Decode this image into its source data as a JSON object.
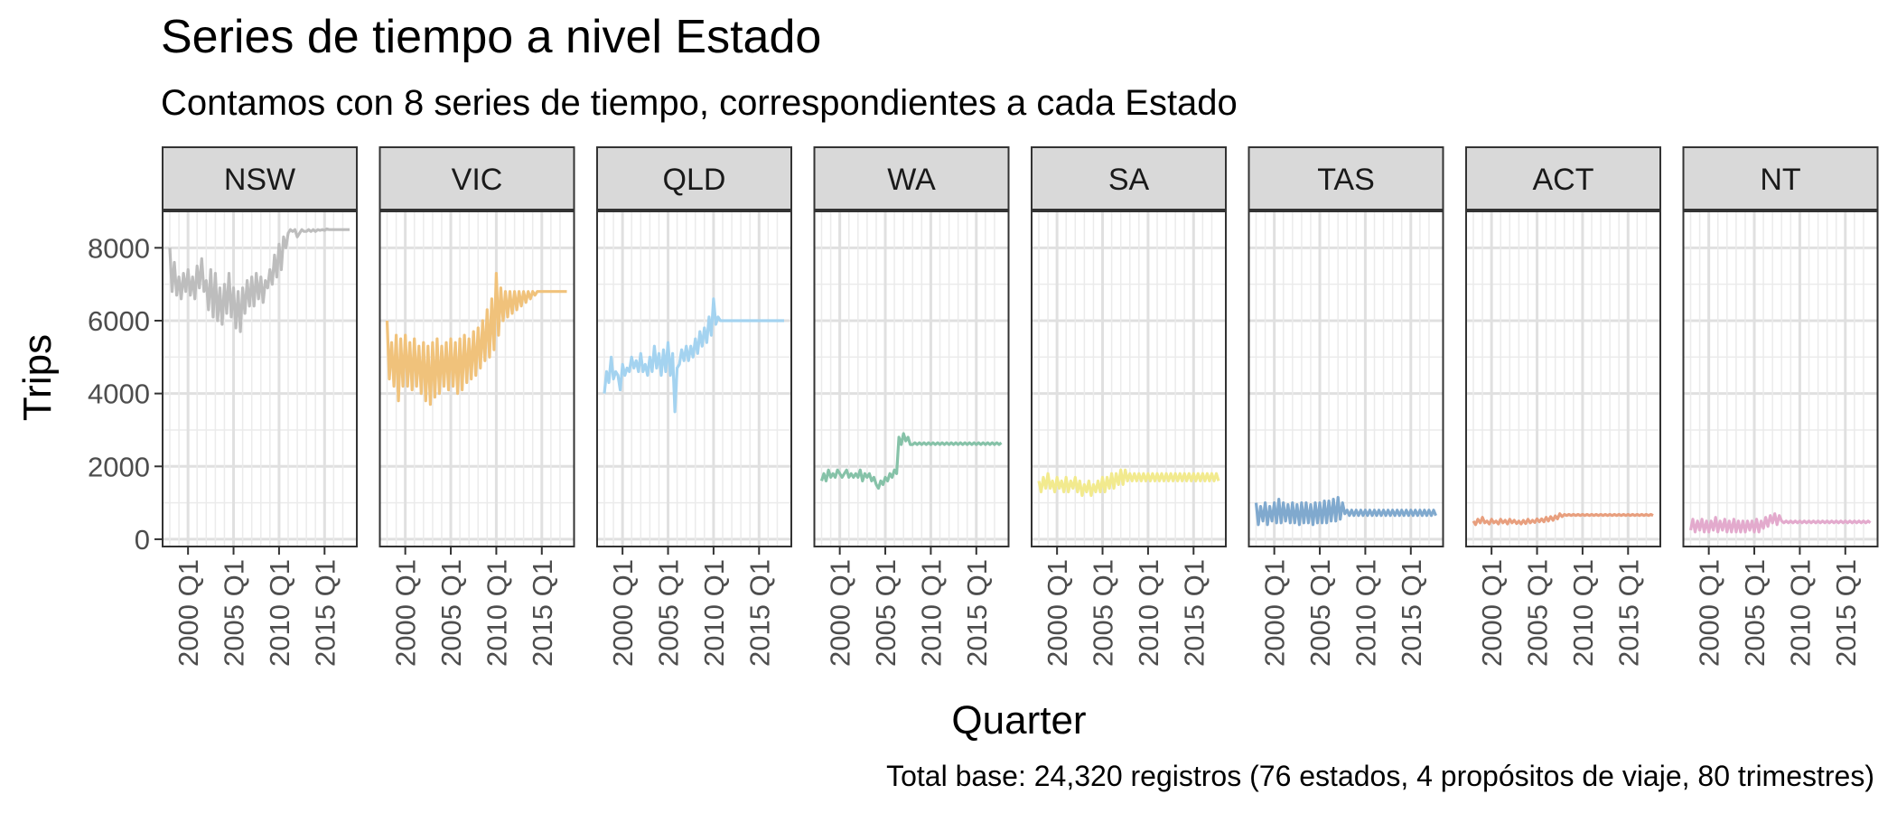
{
  "chart_data": {
    "type": "line",
    "title": "Series de tiempo a nivel Estado",
    "subtitle": "Contamos con 8 series de tiempo, correspondientes a cada Estado",
    "xlabel": "Quarter",
    "ylabel": "Trips",
    "caption": "Total base: 24,320 registros (76 estados, 4 propósitos de viaje, 80 trimestres)",
    "x_range": [
      "1998 Q1",
      "2017 Q4"
    ],
    "x_ticks": [
      "2000 Q1",
      "2005 Q1",
      "2010 Q1",
      "2015 Q1"
    ],
    "ylim": [
      -200,
      9000
    ],
    "y_ticks": [
      0,
      2000,
      4000,
      6000,
      8000
    ],
    "grid": true,
    "legend": "none",
    "series": [
      {
        "name": "NSW",
        "color": "#BDBDBD",
        "start": "1998 Q1",
        "values": [
          8000,
          6800,
          7600,
          6700,
          7200,
          6600,
          7300,
          6800,
          7400,
          6700,
          7200,
          6600,
          7500,
          6900,
          7700,
          6800,
          7100,
          6300,
          7400,
          6100,
          7300,
          6000,
          6900,
          5900,
          7000,
          6200,
          7300,
          6100,
          6900,
          5800,
          6800,
          5700,
          6900,
          6200,
          7100,
          6400,
          7200,
          6400,
          7300,
          6600,
          7200,
          6500,
          7100,
          6900,
          7400,
          7000,
          7800,
          7200,
          8100,
          7400,
          8300,
          8000,
          8400,
          8500,
          8450,
          8500,
          8300,
          8400,
          8500,
          8450,
          8450,
          8500,
          8450,
          8500,
          8450,
          8500,
          8480,
          8500,
          8480,
          8520,
          8500,
          8500,
          8500,
          8500,
          8500,
          8500,
          8500,
          8500,
          8500,
          8500
        ]
      },
      {
        "name": "VIC",
        "color": "#F0C27B",
        "start": "1998 Q1",
        "values": [
          6000,
          4400,
          5400,
          4200,
          5600,
          3800,
          5500,
          4200,
          5600,
          4200,
          5400,
          4100,
          5500,
          4200,
          5300,
          4000,
          5400,
          3800,
          5300,
          3700,
          5400,
          3900,
          5500,
          4000,
          5300,
          4200,
          5400,
          4100,
          5500,
          4200,
          5400,
          4000,
          5500,
          4100,
          5600,
          4300,
          5500,
          4400,
          5700,
          4500,
          5800,
          4700,
          6000,
          4900,
          6300,
          5000,
          6600,
          5200,
          7300,
          5600,
          6900,
          6000,
          6800,
          6100,
          6800,
          6200,
          6800,
          6300,
          6800,
          6400,
          6800,
          6500,
          6800,
          6600,
          6800,
          6700,
          6800,
          6800,
          6800,
          6800,
          6800,
          6800,
          6800,
          6800,
          6800,
          6800,
          6800,
          6800,
          6800,
          6800
        ]
      },
      {
        "name": "QLD",
        "color": "#A4D3F0",
        "start": "1998 Q1",
        "values": [
          4000,
          4600,
          4300,
          5000,
          4400,
          4600,
          4500,
          4100,
          4800,
          4500,
          4700,
          4600,
          5000,
          4700,
          4900,
          4600,
          5100,
          4600,
          4800,
          4500,
          5000,
          4600,
          5300,
          4700,
          5100,
          4500,
          5200,
          4600,
          5400,
          4500,
          5100,
          3500,
          4700,
          4800,
          5200,
          4900,
          5300,
          4900,
          5300,
          5000,
          5500,
          5100,
          5700,
          5300,
          5800,
          5400,
          6100,
          5600,
          6600,
          5900,
          6100,
          6000,
          6000,
          6000,
          6000,
          6000,
          6000,
          6000,
          6000,
          6000,
          6000,
          6000,
          6000,
          6000,
          6000,
          6000,
          6000,
          6000,
          6000,
          6000,
          6000,
          6000,
          6000,
          6000,
          6000,
          6000,
          6000,
          6000,
          6000,
          6000
        ]
      },
      {
        "name": "WA",
        "color": "#86C2A8",
        "start": "1998 Q1",
        "values": [
          1600,
          1800,
          1600,
          1900,
          1700,
          1800,
          1700,
          1900,
          1800,
          1700,
          1800,
          1900,
          1700,
          1800,
          1700,
          1800,
          1700,
          1900,
          1600,
          1800,
          1700,
          1800,
          1600,
          1700,
          1500,
          1400,
          1600,
          1500,
          1700,
          1600,
          1800,
          1700,
          1900,
          1800,
          2800,
          2600,
          2900,
          2700,
          2800,
          2600,
          2600,
          2650,
          2600,
          2650,
          2600,
          2650,
          2600,
          2650,
          2600,
          2650,
          2600,
          2650,
          2600,
          2650,
          2600,
          2650,
          2600,
          2650,
          2600,
          2650,
          2600,
          2650,
          2600,
          2650,
          2600,
          2650,
          2600,
          2650,
          2600,
          2650,
          2600,
          2650,
          2600,
          2650,
          2600,
          2650,
          2600,
          2650,
          2600,
          2650
        ]
      },
      {
        "name": "SA",
        "color": "#F2EA8E",
        "start": "1998 Q1",
        "values": [
          1600,
          1300,
          1700,
          1400,
          1800,
          1400,
          1600,
          1300,
          1700,
          1400,
          1600,
          1300,
          1700,
          1300,
          1600,
          1400,
          1700,
          1300,
          1600,
          1200,
          1500,
          1300,
          1600,
          1200,
          1500,
          1300,
          1600,
          1300,
          1700,
          1300,
          1700,
          1400,
          1800,
          1400,
          1800,
          1500,
          1900,
          1500,
          1900,
          1600,
          1800,
          1600,
          1800,
          1600,
          1800,
          1600,
          1800,
          1600,
          1800,
          1600,
          1800,
          1600,
          1800,
          1600,
          1800,
          1600,
          1800,
          1600,
          1800,
          1600,
          1800,
          1600,
          1800,
          1600,
          1800,
          1600,
          1800,
          1600,
          1800,
          1600,
          1800,
          1600,
          1800,
          1600,
          1800,
          1600,
          1800,
          1600,
          1800,
          1600
        ]
      },
      {
        "name": "TAS",
        "color": "#80A9CE",
        "start": "1998 Q1",
        "values": [
          1000,
          400,
          900,
          500,
          1000,
          400,
          900,
          500,
          1000,
          450,
          1100,
          450,
          1000,
          500,
          950,
          450,
          1000,
          450,
          950,
          400,
          1000,
          450,
          1000,
          450,
          950,
          400,
          1000,
          450,
          1000,
          450,
          1050,
          450,
          1050,
          500,
          1100,
          500,
          1150,
          550,
          1000,
          700,
          800,
          650,
          800,
          650,
          800,
          650,
          800,
          650,
          800,
          650,
          800,
          650,
          800,
          650,
          800,
          650,
          800,
          650,
          800,
          650,
          800,
          650,
          800,
          650,
          800,
          650,
          800,
          650,
          800,
          650,
          800,
          650,
          800,
          650,
          800,
          650,
          800,
          650,
          800,
          650
        ]
      },
      {
        "name": "ACT",
        "color": "#E89F7E",
        "start": "1998 Q1",
        "values": [
          500,
          400,
          550,
          450,
          600,
          450,
          500,
          420,
          550,
          450,
          500,
          420,
          550,
          450,
          520,
          420,
          550,
          450,
          520,
          430,
          500,
          420,
          520,
          430,
          550,
          450,
          520,
          460,
          560,
          480,
          560,
          480,
          600,
          500,
          620,
          520,
          640,
          560,
          700,
          620,
          680,
          650,
          680,
          650,
          680,
          650,
          680,
          650,
          680,
          650,
          680,
          650,
          680,
          650,
          680,
          650,
          680,
          650,
          680,
          650,
          680,
          650,
          680,
          650,
          680,
          650,
          680,
          650,
          680,
          650,
          680,
          650,
          680,
          650,
          680,
          650,
          680,
          650,
          680,
          650
        ]
      },
      {
        "name": "NT",
        "color": "#E3AACD",
        "start": "1998 Q1",
        "values": [
          250,
          550,
          200,
          500,
          250,
          550,
          200,
          500,
          200,
          500,
          250,
          600,
          200,
          500,
          250,
          550,
          200,
          500,
          200,
          550,
          200,
          500,
          200,
          500,
          200,
          500,
          250,
          500,
          200,
          550,
          200,
          500,
          300,
          600,
          350,
          650,
          450,
          700,
          400,
          650,
          500,
          450,
          500,
          450,
          500,
          450,
          500,
          450,
          500,
          450,
          500,
          450,
          500,
          450,
          500,
          450,
          500,
          450,
          500,
          450,
          500,
          450,
          500,
          450,
          500,
          450,
          500,
          450,
          500,
          450,
          500,
          450,
          500,
          450,
          500,
          450,
          500,
          450,
          500,
          450
        ]
      }
    ]
  }
}
